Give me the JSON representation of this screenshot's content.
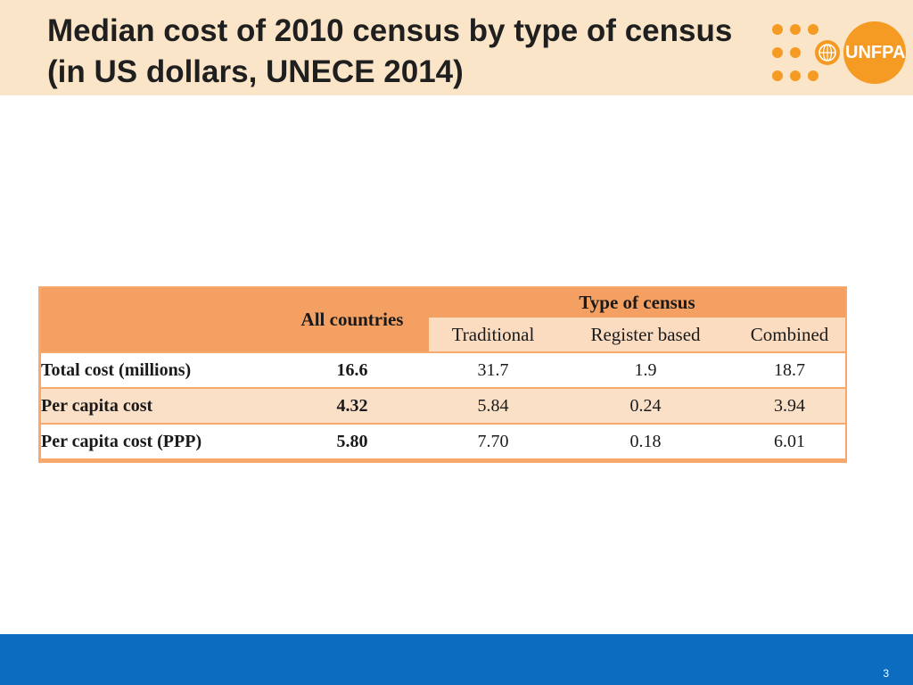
{
  "slide": {
    "title": "Median cost of 2010 census by type of census (in US dollars, UNECE 2014)",
    "page_number": "3"
  },
  "logo": {
    "text": "UNFPA",
    "accent_color": "#f59a23",
    "icon": "un-emblem-icon"
  },
  "table": {
    "header": {
      "all_countries": "All countries",
      "group": "Type of census",
      "columns": [
        "Traditional",
        "Register based",
        "Combined"
      ]
    },
    "rows": [
      {
        "label": "Total cost (millions)",
        "all": "16.6",
        "traditional": "31.7",
        "register": "1.9",
        "combined": "18.7"
      },
      {
        "label": "Per capita cost",
        "all": "4.32",
        "traditional": "5.84",
        "register": "0.24",
        "combined": "3.94"
      },
      {
        "label": "Per capita cost (PPP)",
        "all": "5.80",
        "traditional": "7.70",
        "register": "0.18",
        "combined": "6.01"
      }
    ]
  },
  "colors": {
    "header_band": "#fbe5c8",
    "table_header": "#f4a062",
    "table_subheader": "#fbdcc0",
    "footer_bar": "#0c6cc0"
  }
}
